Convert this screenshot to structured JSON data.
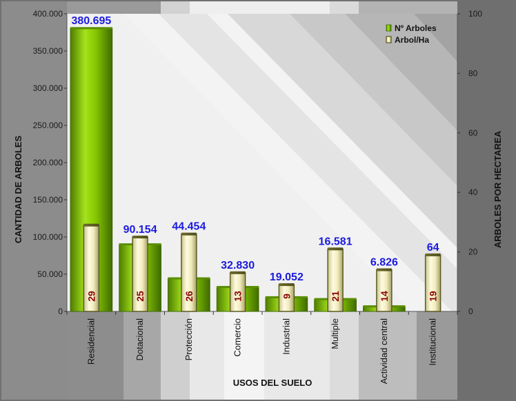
{
  "chart_data": {
    "type": "bar",
    "categories": [
      "Residencial",
      "Dotacional",
      "Protección",
      "Comercio",
      "Industrial",
      "Multiple",
      "Actividad central",
      "Institucional"
    ],
    "series": [
      {
        "name": "Nº Arboles",
        "axis": "left",
        "values": [
          380695,
          90154,
          44454,
          32830,
          19052,
          16581,
          6826,
          64
        ],
        "labels": [
          "380.695",
          "90.154",
          "44.454",
          "32.830",
          "19.052",
          "16.581",
          "6.826",
          "64"
        ],
        "color": "#7fbf00"
      },
      {
        "name": "Arbol/Ha",
        "axis": "right",
        "values": [
          29,
          25,
          26,
          13,
          9,
          21,
          14,
          19
        ],
        "labels": [
          "29",
          "25",
          "26",
          "13",
          "9",
          "21",
          "14",
          "19"
        ],
        "color": "#f4f0c4"
      }
    ],
    "xlabel": "USOS DEL SUELO",
    "ylabel": "CANTIDAD DE ARBOLES",
    "y2label": "ARBOLES POR HECTAREA",
    "ylim": [
      0,
      400000
    ],
    "y2lim": [
      0,
      100
    ],
    "yticks": [
      0,
      50000,
      100000,
      150000,
      200000,
      250000,
      300000,
      350000,
      400000
    ],
    "ytick_labels": [
      "0",
      "50.000",
      "100.000",
      "150.000",
      "200.000",
      "250.000",
      "300.000",
      "350.000",
      "400.000"
    ],
    "y2ticks": [
      0,
      20,
      40,
      60,
      80,
      100
    ],
    "y2tick_labels": [
      "0",
      "20",
      "40",
      "60",
      "80",
      "100"
    ],
    "legend_position": "top-right",
    "grid": false,
    "colors": {
      "bar_green": "#7fbf00",
      "bar_cream": "#f4f0c4",
      "value_label": "#1a1ae0",
      "density_label": "#8b0000",
      "frame": "#707070"
    }
  }
}
